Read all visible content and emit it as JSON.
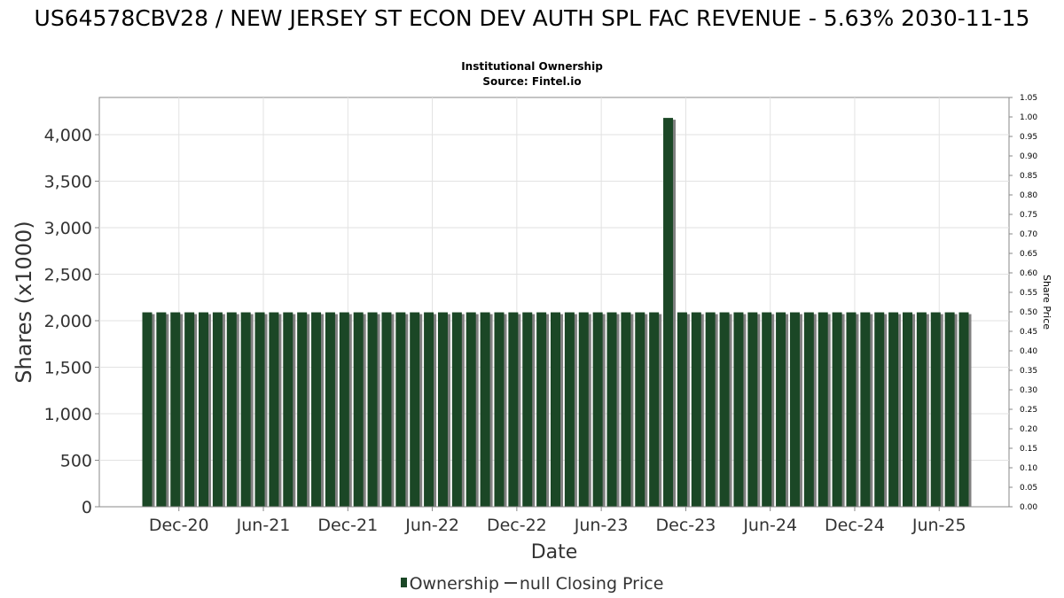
{
  "header": {
    "title": "US64578CBV28 / NEW JERSEY ST ECON DEV AUTH SPL FAC REVENUE - 5.63% 2030-11-15",
    "subtitle_line1": "Institutional Ownership",
    "subtitle_line2": "Source: Fintel.io"
  },
  "legend": {
    "ownership_label": "Ownership",
    "price_label": "null Closing Price"
  },
  "colors": {
    "bar": "#1b4726",
    "bar_shadow": "#808080",
    "grid": "#e2e2e2",
    "axis": "#888888"
  },
  "chart_data": {
    "type": "bar",
    "xlabel": "Date",
    "ylabel": "Shares (x1000)",
    "y2label": "Share Price",
    "ylim": [
      0,
      4400
    ],
    "y2lim": [
      0,
      1.05
    ],
    "yticks": [
      0,
      500,
      1000,
      1500,
      2000,
      2500,
      3000,
      3500,
      4000
    ],
    "ytick_labels": [
      "0",
      "500",
      "1,000",
      "1,500",
      "2,000",
      "2,500",
      "3,000",
      "3,500",
      "4,000"
    ],
    "y2ticks": [
      0,
      0.05,
      0.1,
      0.15,
      0.2,
      0.25,
      0.3,
      0.35,
      0.4,
      0.45,
      0.5,
      0.55,
      0.6,
      0.65,
      0.7,
      0.75,
      0.8,
      0.85,
      0.9,
      0.95,
      1.0,
      1.05
    ],
    "y2tick_labels": [
      "0.00",
      "0.05",
      "0.10",
      "0.15",
      "0.20",
      "0.25",
      "0.30",
      "0.35",
      "0.40",
      "0.45",
      "0.50",
      "0.55",
      "0.60",
      "0.65",
      "0.70",
      "0.75",
      "0.80",
      "0.85",
      "0.90",
      "0.95",
      "1.00",
      "1.05"
    ],
    "xtick_labels": [
      "Dec-20",
      "Jun-21",
      "Dec-21",
      "Jun-22",
      "Dec-22",
      "Jun-23",
      "Dec-23",
      "Jun-24",
      "Dec-24",
      "Jun-25"
    ],
    "grid": true,
    "legend_position": "bottom",
    "series": [
      {
        "name": "Ownership",
        "values": [
          2090,
          2090,
          2090,
          2090,
          2090,
          2090,
          2090,
          2090,
          2090,
          2090,
          2090,
          2090,
          2090,
          2090,
          2090,
          2090,
          2090,
          2090,
          2090,
          2090,
          2090,
          2090,
          2090,
          2090,
          2090,
          2090,
          2090,
          2090,
          2090,
          2090,
          2090,
          2090,
          2090,
          2090,
          2090,
          2090,
          2090,
          4180,
          2090,
          2090,
          2090,
          2090,
          2090,
          2090,
          2090,
          2090,
          2090,
          2090,
          2090,
          2090,
          2090,
          2090,
          2090,
          2090,
          2090,
          2090,
          2090,
          2090,
          2090
        ]
      }
    ]
  }
}
